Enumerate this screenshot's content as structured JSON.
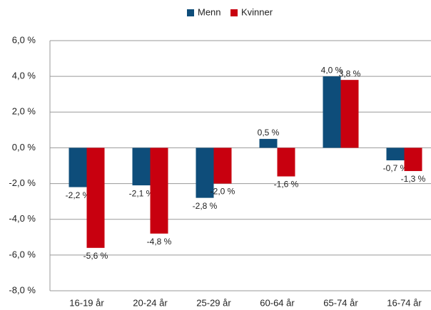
{
  "chart_data": {
    "type": "bar",
    "categories": [
      "16-19 år",
      "20-24 år",
      "25-29 år",
      "60-64 år",
      "65-74 år",
      "16-74 år"
    ],
    "series": [
      {
        "name": "Menn",
        "color": "#0e4d7a",
        "values": [
          -2.2,
          -2.1,
          -2.8,
          0.5,
          4.0,
          -0.7
        ],
        "value_labels": [
          "-2,2 %",
          "-2,1 %",
          "-2,8 %",
          "0,5 %",
          "4,0 %",
          "-0,7 %"
        ]
      },
      {
        "name": "Kvinner",
        "color": "#c8000f",
        "values": [
          -5.6,
          -4.8,
          -2.0,
          -1.6,
          3.8,
          -1.3
        ],
        "value_labels": [
          "-5,6 %",
          "-4,8 %",
          "-2,0 %",
          "-1,6 %",
          "3,8 %",
          "-1,3 %"
        ]
      }
    ],
    "ylim": [
      -8,
      6
    ],
    "yticks": [
      {
        "value": -8,
        "label": "-8,0 %"
      },
      {
        "value": -6,
        "label": "-6,0 %"
      },
      {
        "value": -4,
        "label": "-4,0 %"
      },
      {
        "value": -2,
        "label": "-2,0 %"
      },
      {
        "value": 0,
        "label": "0,0 %"
      },
      {
        "value": 2,
        "label": "2,0 %"
      },
      {
        "value": 4,
        "label": "4,0 %"
      },
      {
        "value": 6,
        "label": "6,0 %"
      }
    ],
    "grid": true,
    "legend": "top"
  }
}
